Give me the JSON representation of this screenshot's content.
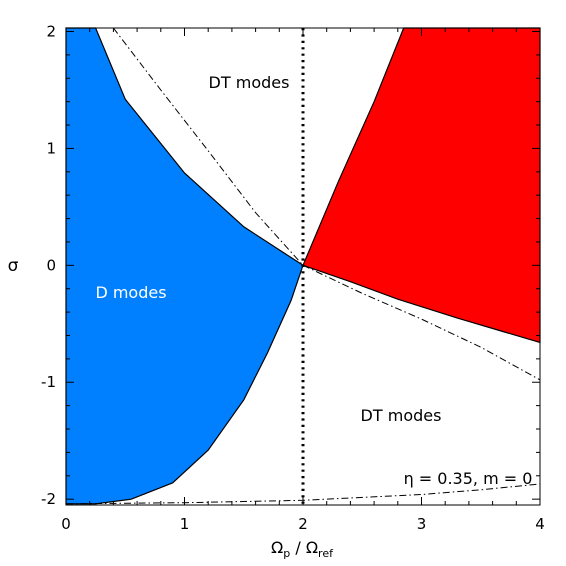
{
  "chart_data": {
    "type": "area",
    "xlabel": "Ω_p / Ω_ref",
    "xlabel_parts": {
      "base": "Ω",
      "sub1": "p",
      "sep": " / ",
      "base2": "Ω",
      "sub2": "ref"
    },
    "ylabel": "σ",
    "xlim": [
      0,
      4
    ],
    "ylim": [
      -2.05,
      2.03
    ],
    "x_ticks": [
      "0",
      "1",
      "2",
      "3",
      "4"
    ],
    "y_ticks": [
      "-2",
      "-1",
      "0",
      "1",
      "2"
    ],
    "grid": false,
    "legend": "none",
    "annotations": {
      "dt_upper": "DT modes",
      "dt_lower": "DT modes",
      "d_modes": "D modes",
      "params": "η = 0.35, m = 0"
    },
    "reference_line": {
      "x": 2,
      "style": "dotted"
    },
    "regions": [
      {
        "label": "D modes",
        "color": "#0080ff",
        "points": [
          [
            0.0,
            2.03
          ],
          [
            0.25,
            2.03
          ],
          [
            0.5,
            1.42
          ],
          [
            1.0,
            0.79
          ],
          [
            1.5,
            0.33
          ],
          [
            2.0,
            0.0
          ],
          [
            1.9,
            -0.3
          ],
          [
            1.7,
            -0.75
          ],
          [
            1.5,
            -1.15
          ],
          [
            1.2,
            -1.58
          ],
          [
            0.9,
            -1.86
          ],
          [
            0.55,
            -2.0
          ],
          [
            0.25,
            -2.04
          ],
          [
            0.0,
            -2.04
          ]
        ]
      },
      {
        "label": "",
        "color": "#ff0000",
        "points": [
          [
            2.0,
            0.0
          ],
          [
            2.3,
            0.72
          ],
          [
            2.6,
            1.4
          ],
          [
            2.85,
            2.03
          ],
          [
            4.0,
            2.03
          ],
          [
            4.0,
            -0.66
          ],
          [
            3.7,
            -0.57
          ],
          [
            3.3,
            -0.45
          ],
          [
            2.8,
            -0.29
          ],
          [
            2.4,
            -0.14
          ],
          [
            2.0,
            0.0
          ]
        ]
      }
    ],
    "dash_dot_curves": [
      {
        "points": [
          [
            0.4,
            2.03
          ],
          [
            0.8,
            1.5
          ],
          [
            1.2,
            0.98
          ],
          [
            1.6,
            0.45
          ],
          [
            2.0,
            0.0
          ]
        ]
      },
      {
        "points": [
          [
            2.0,
            0.0
          ],
          [
            2.5,
            -0.24
          ],
          [
            3.0,
            -0.46
          ],
          [
            3.5,
            -0.7
          ],
          [
            4.0,
            -0.98
          ]
        ]
      },
      {
        "points": [
          [
            0.0,
            -2.04
          ],
          [
            1.0,
            -2.03
          ],
          [
            2.0,
            -2.01
          ],
          [
            3.0,
            -1.96
          ],
          [
            3.5,
            -1.92
          ],
          [
            4.0,
            -1.87
          ]
        ]
      }
    ]
  }
}
